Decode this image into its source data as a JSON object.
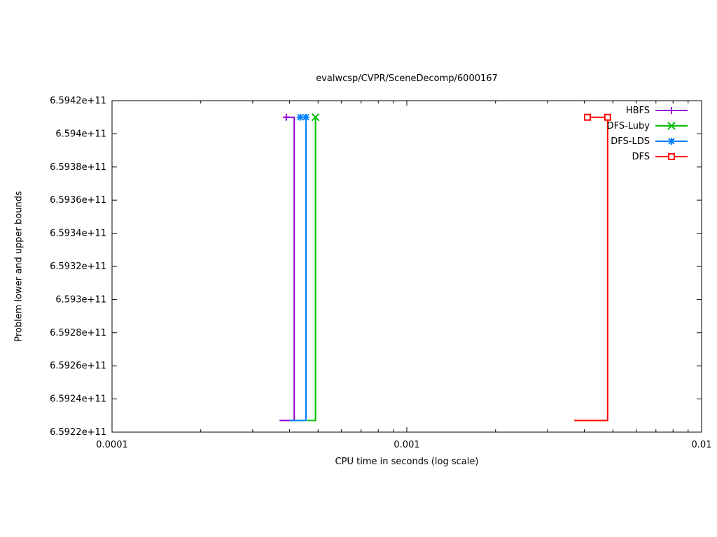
{
  "chart_data": {
    "type": "line",
    "title": "evalwcsp/CVPR/SceneDecomp/6000167",
    "xlabel": "CPU time in seconds (log scale)",
    "ylabel": "Problem lower and upper bounds",
    "x_scale": "log",
    "grid": false,
    "legend_position": "top-right-inside",
    "xlim": [
      0.0001,
      0.01
    ],
    "ylim": [
      659220000000,
      659420000000
    ],
    "x_ticks": [
      {
        "value": 0.0001,
        "label": "0.0001"
      },
      {
        "value": 0.001,
        "label": "0.001"
      },
      {
        "value": 0.01,
        "label": "0.01"
      }
    ],
    "y_ticks": [
      {
        "value": 659220000000,
        "label": "6.5922e+11"
      },
      {
        "value": 659240000000,
        "label": "6.5924e+11"
      },
      {
        "value": 659260000000,
        "label": "6.5926e+11"
      },
      {
        "value": 659280000000,
        "label": "6.5928e+11"
      },
      {
        "value": 659300000000,
        "label": "6.593e+11"
      },
      {
        "value": 659320000000,
        "label": "6.5932e+11"
      },
      {
        "value": 659340000000,
        "label": "6.5934e+11"
      },
      {
        "value": 659360000000,
        "label": "6.5936e+11"
      },
      {
        "value": 659380000000,
        "label": "6.5938e+11"
      },
      {
        "value": 659400000000,
        "label": "6.594e+11"
      },
      {
        "value": 659420000000,
        "label": "6.5942e+11"
      }
    ],
    "upper_bound": 659410000000,
    "lower_bound": 659227000000,
    "series": [
      {
        "name": "HBFS",
        "color": "#9400d3",
        "marker": "plus",
        "points": [
          [
            0.00039,
            659410000000
          ],
          [
            0.000415,
            659410000000
          ],
          [
            0.000415,
            659227000000
          ],
          [
            0.00037,
            659227000000
          ]
        ],
        "marker_points": [
          [
            0.00039,
            659410000000
          ]
        ]
      },
      {
        "name": "DFS-Luby",
        "color": "#00c000",
        "marker": "cross",
        "points": [
          [
            0.00049,
            659410000000
          ],
          [
            0.00049,
            659227000000
          ],
          [
            0.00046,
            659227000000
          ]
        ],
        "marker_points": [
          [
            0.00049,
            659410000000
          ]
        ]
      },
      {
        "name": "DFS-LDS",
        "color": "#0080ff",
        "marker": "asterisk",
        "points": [
          [
            0.000435,
            659410000000
          ],
          [
            0.000455,
            659410000000
          ],
          [
            0.000455,
            659227000000
          ],
          [
            0.0004,
            659227000000
          ]
        ],
        "marker_points": [
          [
            0.000435,
            659410000000
          ],
          [
            0.000455,
            659410000000
          ]
        ]
      },
      {
        "name": "DFS",
        "color": "#ff0000",
        "marker": "square",
        "points": [
          [
            0.0041,
            659410000000
          ],
          [
            0.0048,
            659410000000
          ],
          [
            0.0048,
            659227000000
          ],
          [
            0.0037,
            659227000000
          ]
        ],
        "marker_points": [
          [
            0.0041,
            659410000000
          ],
          [
            0.0048,
            659410000000
          ]
        ]
      }
    ]
  }
}
